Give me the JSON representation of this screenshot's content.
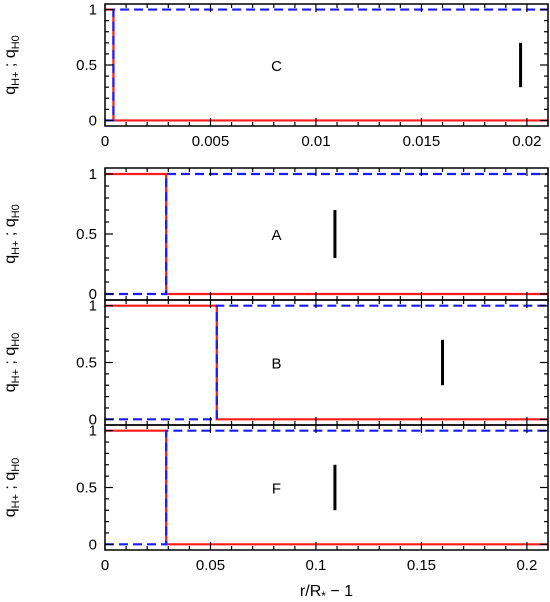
{
  "chart_data": [
    {
      "type": "line",
      "panel_label": "C",
      "xlim": [
        0,
        0.021
      ],
      "ylim": [
        -0.05,
        1.05
      ],
      "xticks": [
        0,
        0.005,
        0.01,
        0.015,
        0.02
      ],
      "xtick_labels": [
        "0",
        "0.005",
        "0.01",
        "0.015",
        "0.02"
      ],
      "yticks": [
        0,
        0.5,
        1
      ],
      "ytick_labels": [
        "0",
        "0.5",
        "1"
      ],
      "ylabel": "q_H+ ; q_H0",
      "xlabel": "",
      "marker_x": 0.0197,
      "marker_y": [
        0.3,
        0.7
      ],
      "series": [
        {
          "color": "#ff1a1a",
          "style": "solid",
          "x": [
            0,
            0.0004,
            0.0004,
            0.021
          ],
          "y": [
            1,
            1,
            0,
            0
          ]
        },
        {
          "color": "#1a1aff",
          "style": "dashed",
          "x": [
            0,
            0.0004,
            0.0004,
            0.021
          ],
          "y": [
            0,
            0,
            1,
            1
          ]
        }
      ]
    },
    {
      "type": "line",
      "panel_label": "A",
      "xlim": [
        0,
        0.21
      ],
      "ylim": [
        -0.05,
        1.05
      ],
      "xticks": [
        0,
        0.05,
        0.1,
        0.15,
        0.2
      ],
      "xtick_labels": [],
      "yticks": [
        0,
        0.5,
        1
      ],
      "ytick_labels": [
        "0",
        "0.5",
        "1"
      ],
      "ylabel": "q_H+ ; q_H0",
      "xlabel": "",
      "marker_x": 0.109,
      "marker_y": [
        0.3,
        0.7
      ],
      "series": [
        {
          "color": "#ff1a1a",
          "style": "solid",
          "x": [
            0,
            0.029,
            0.029,
            0.21
          ],
          "y": [
            1,
            1,
            0,
            0
          ]
        },
        {
          "color": "#1a1aff",
          "style": "dashed",
          "x": [
            0,
            0.029,
            0.029,
            0.21
          ],
          "y": [
            0,
            0,
            1,
            1
          ]
        }
      ]
    },
    {
      "type": "line",
      "panel_label": "B",
      "xlim": [
        0,
        0.21
      ],
      "ylim": [
        -0.05,
        1.05
      ],
      "xticks": [
        0,
        0.05,
        0.1,
        0.15,
        0.2
      ],
      "xtick_labels": [],
      "yticks": [
        0,
        0.5,
        1
      ],
      "ytick_labels": [
        "0",
        "0.5",
        "1"
      ],
      "ylabel": "q_H+ ; q_H0",
      "xlabel": "",
      "marker_x": 0.16,
      "marker_y": [
        0.3,
        0.7
      ],
      "series": [
        {
          "color": "#ff1a1a",
          "style": "solid",
          "x": [
            0,
            0.053,
            0.053,
            0.21
          ],
          "y": [
            1,
            1,
            0,
            0
          ]
        },
        {
          "color": "#1a1aff",
          "style": "dashed",
          "x": [
            0,
            0.053,
            0.053,
            0.21
          ],
          "y": [
            0,
            0,
            1,
            1
          ]
        }
      ]
    },
    {
      "type": "line",
      "panel_label": "F",
      "xlim": [
        0,
        0.21
      ],
      "ylim": [
        -0.05,
        1.05
      ],
      "xticks": [
        0,
        0.05,
        0.1,
        0.15,
        0.2
      ],
      "xtick_labels": [
        "0",
        "0.05",
        "0.1",
        "0.15",
        "0.2"
      ],
      "yticks": [
        0,
        0.5,
        1
      ],
      "ytick_labels": [
        "0",
        "0.5",
        "1"
      ],
      "ylabel": "q_H+ ; q_H0",
      "xlabel": "r/R* − 1",
      "marker_x": 0.109,
      "marker_y": [
        0.3,
        0.7
      ],
      "series": [
        {
          "color": "#ff1a1a",
          "style": "solid",
          "x": [
            0,
            0.029,
            0.029,
            0.21
          ],
          "y": [
            1,
            1,
            0,
            0
          ]
        },
        {
          "color": "#1a1aff",
          "style": "dashed",
          "x": [
            0,
            0.029,
            0.029,
            0.21
          ],
          "y": [
            0,
            0,
            1,
            1
          ]
        }
      ]
    }
  ]
}
